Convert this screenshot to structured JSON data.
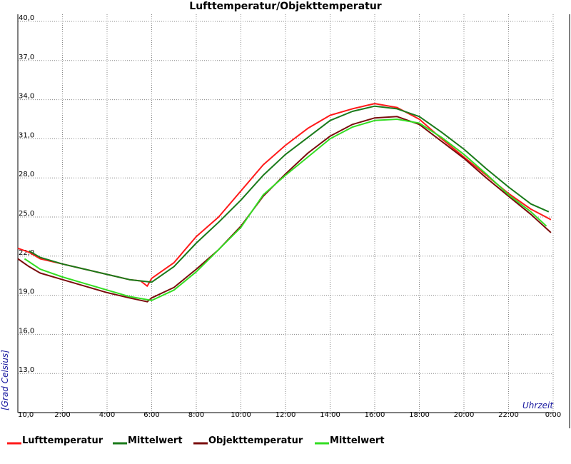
{
  "chart_data": {
    "type": "line",
    "title": "Lufttemperatur/Objekttemperatur",
    "xlabel": "Uhrzeit",
    "ylabel": "[Grad Celsius]",
    "x_unit": "hours",
    "xlim": [
      0,
      24
    ],
    "ylim": [
      10,
      40
    ],
    "x_tick_labels": [
      "10,0",
      "2:00",
      "4:00",
      "6:00",
      "8:00",
      "10:00",
      "12:00",
      "14:00",
      "16:00",
      "18:00",
      "20:00",
      "22:00",
      "0:00"
    ],
    "y_tick_labels": [
      "40,0",
      "37,0",
      "34,0",
      "31,0",
      "28,0",
      "25,0",
      "22,0",
      "19,0",
      "16,0",
      "13,0"
    ],
    "grid": true,
    "legend_position": "bottom",
    "series": [
      {
        "name": "Lufttemperatur",
        "color": "#ff1a1a",
        "points": [
          [
            0,
            22.6
          ],
          [
            0.5,
            22.3
          ],
          [
            1,
            21.8
          ],
          [
            2,
            21.4
          ],
          [
            3,
            21.0
          ],
          [
            4,
            20.6
          ],
          [
            5,
            20.2
          ],
          [
            5.5,
            20.1
          ],
          [
            5.8,
            19.7
          ],
          [
            6,
            20.3
          ],
          [
            7,
            21.5
          ],
          [
            8,
            23.5
          ],
          [
            9,
            25.0
          ],
          [
            10,
            27.0
          ],
          [
            11,
            29.0
          ],
          [
            12,
            30.5
          ],
          [
            13,
            31.8
          ],
          [
            14,
            32.8
          ],
          [
            15,
            33.3
          ],
          [
            16,
            33.7
          ],
          [
            17,
            33.4
          ],
          [
            18,
            32.5
          ],
          [
            19,
            31.0
          ],
          [
            20,
            29.6
          ],
          [
            21,
            28.2
          ],
          [
            22,
            26.8
          ],
          [
            23,
            25.6
          ],
          [
            23.9,
            24.8
          ]
        ]
      },
      {
        "name": "Mittelwert",
        "color": "#1a7a1a",
        "points": [
          [
            0.5,
            22.4
          ],
          [
            1,
            21.9
          ],
          [
            2,
            21.4
          ],
          [
            3,
            21.0
          ],
          [
            4,
            20.6
          ],
          [
            5,
            20.2
          ],
          [
            6,
            20.0
          ],
          [
            7,
            21.2
          ],
          [
            8,
            23.0
          ],
          [
            9,
            24.6
          ],
          [
            10,
            26.3
          ],
          [
            11,
            28.2
          ],
          [
            12,
            29.8
          ],
          [
            13,
            31.1
          ],
          [
            14,
            32.4
          ],
          [
            15,
            33.1
          ],
          [
            16,
            33.5
          ],
          [
            17,
            33.3
          ],
          [
            18,
            32.7
          ],
          [
            19,
            31.5
          ],
          [
            20,
            30.2
          ],
          [
            21,
            28.7
          ],
          [
            22,
            27.3
          ],
          [
            23,
            26.0
          ],
          [
            23.8,
            25.4
          ]
        ]
      },
      {
        "name": "Objekttemperatur",
        "color": "#7a0d0d",
        "points": [
          [
            0,
            21.8
          ],
          [
            0.5,
            21.2
          ],
          [
            1,
            20.7
          ],
          [
            2,
            20.2
          ],
          [
            3,
            19.7
          ],
          [
            4,
            19.2
          ],
          [
            5,
            18.8
          ],
          [
            5.8,
            18.5
          ],
          [
            6,
            18.8
          ],
          [
            7,
            19.6
          ],
          [
            8,
            21.0
          ],
          [
            9,
            22.5
          ],
          [
            10,
            24.3
          ],
          [
            11,
            26.6
          ],
          [
            12,
            28.3
          ],
          [
            13,
            29.9
          ],
          [
            14,
            31.2
          ],
          [
            15,
            32.1
          ],
          [
            16,
            32.6
          ],
          [
            17,
            32.7
          ],
          [
            18,
            32.1
          ],
          [
            19,
            30.8
          ],
          [
            20,
            29.5
          ],
          [
            21,
            28.0
          ],
          [
            22,
            26.6
          ],
          [
            23,
            25.2
          ],
          [
            23.9,
            23.8
          ]
        ]
      },
      {
        "name": "Mittelwert",
        "color": "#33dd22",
        "points": [
          [
            0.3,
            21.8
          ],
          [
            1,
            21.0
          ],
          [
            2,
            20.4
          ],
          [
            3,
            19.9
          ],
          [
            4,
            19.4
          ],
          [
            5,
            18.9
          ],
          [
            6,
            18.6
          ],
          [
            7,
            19.4
          ],
          [
            8,
            20.8
          ],
          [
            9,
            22.5
          ],
          [
            10,
            24.2
          ],
          [
            11,
            26.7
          ],
          [
            12,
            28.2
          ],
          [
            13,
            29.6
          ],
          [
            14,
            31.0
          ],
          [
            15,
            31.9
          ],
          [
            16,
            32.4
          ],
          [
            17,
            32.5
          ],
          [
            18,
            32.2
          ],
          [
            19,
            31.1
          ],
          [
            20,
            29.8
          ],
          [
            21,
            28.3
          ],
          [
            22,
            26.7
          ],
          [
            23,
            25.4
          ],
          [
            23.7,
            24.3
          ]
        ]
      }
    ]
  }
}
